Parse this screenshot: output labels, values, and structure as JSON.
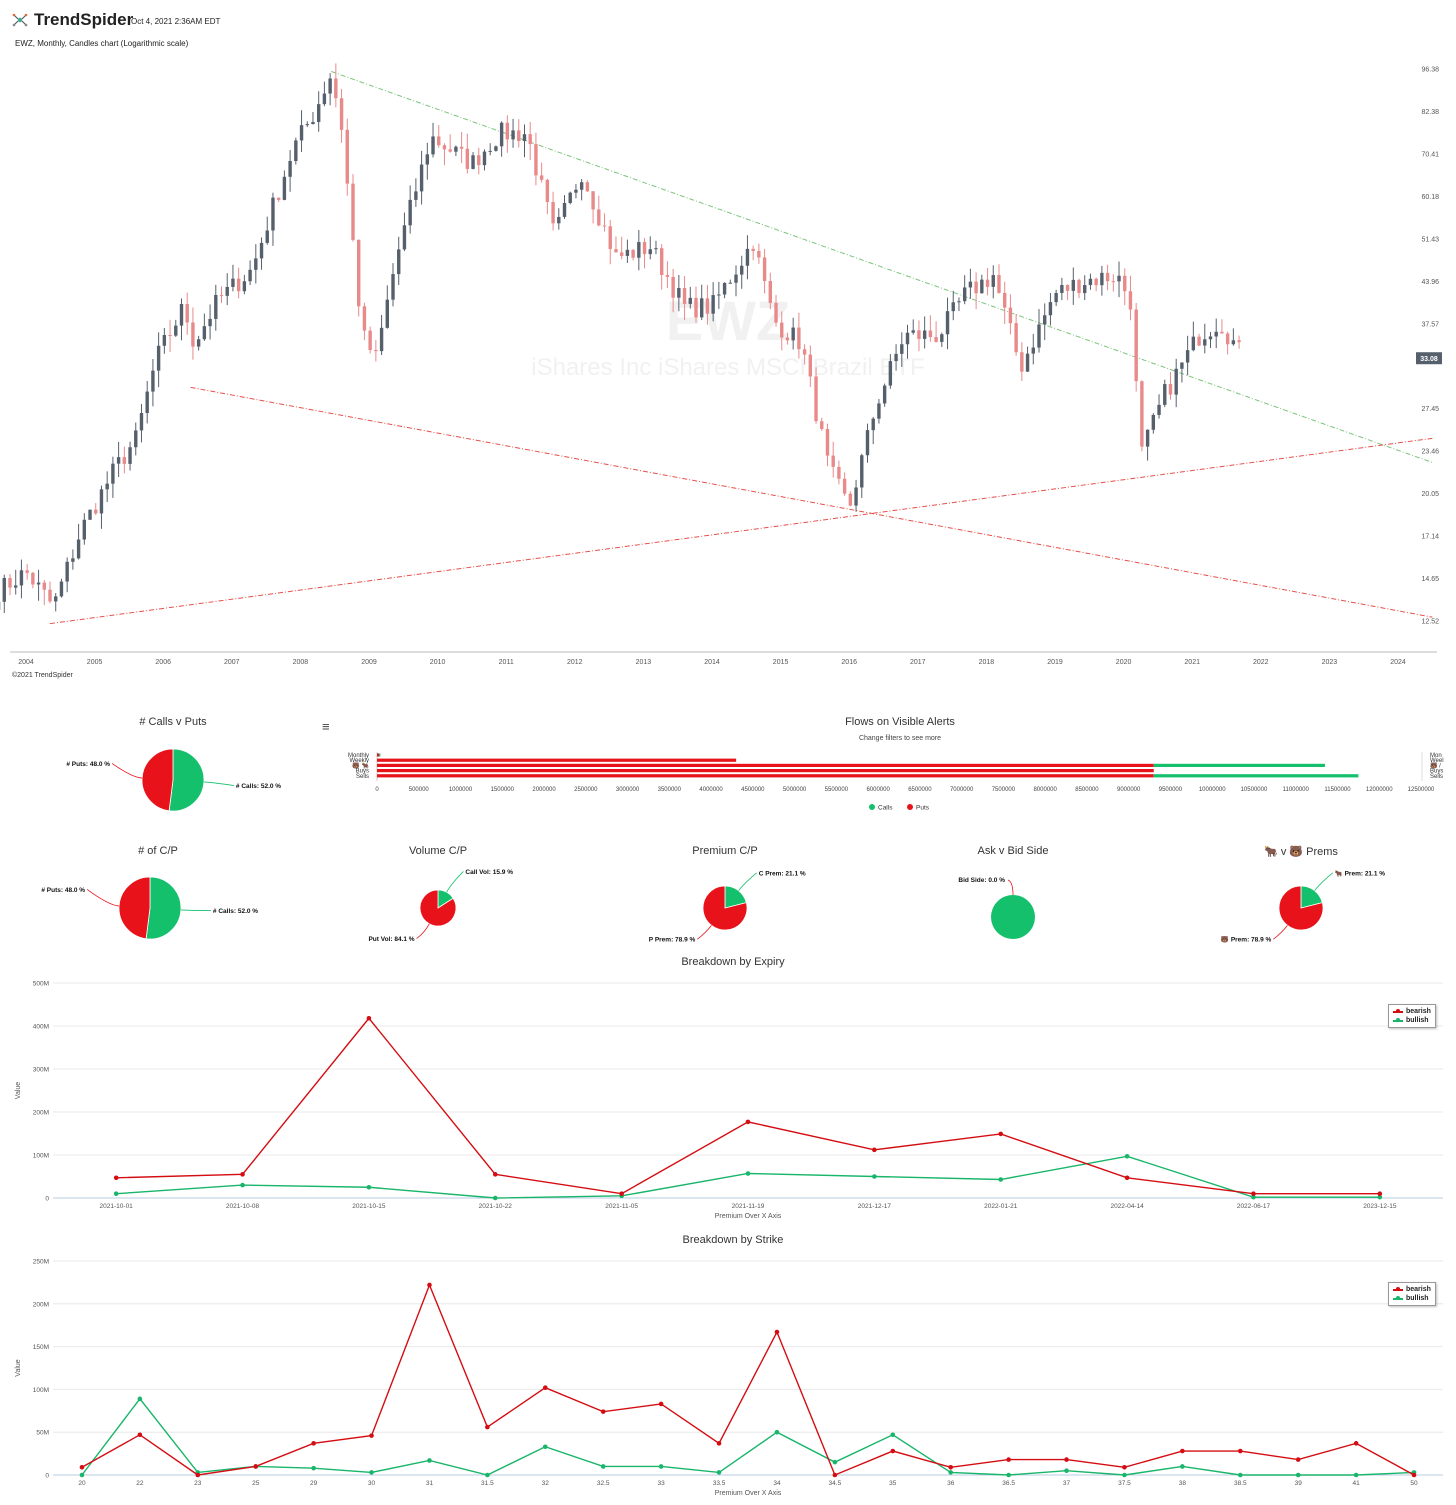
{
  "header": {
    "brand": "TrendSpider",
    "date": "Oct 4, 2021 2:36AM EDT",
    "subtitle": "EWZ, Monthly, Candles chart (Logarithmic scale)",
    "copyright": "©2021 TrendSpider",
    "watermark_symbol": "EWZ",
    "watermark_name": "iShares Inc iShares MSCI Brazil ETF",
    "price_badge": "33.08"
  },
  "colors": {
    "bull": "#56606d",
    "bear": "#e88a8a",
    "calls": "#14c06b",
    "puts": "#e8121b",
    "trend_green": "#7cc47c",
    "trend_red": "#e8504a",
    "bearish": "#d40d12",
    "bullish": "#18b56a"
  },
  "chart_data": [
    {
      "type": "candlestick",
      "title": "EWZ, Monthly, Candles chart (Logarithmic scale)",
      "y_scale": "log",
      "y_tick_labels": [
        "96.38",
        "82.38",
        "70.41",
        "60.18",
        "51.43",
        "43.96",
        "37.57",
        "27.45",
        "23.46",
        "20.05",
        "17.14",
        "14.65",
        "12.52"
      ],
      "x_tick_labels": [
        "2004",
        "2005",
        "2006",
        "2007",
        "2008",
        "2009",
        "2010",
        "2011",
        "2012",
        "2013",
        "2014",
        "2015",
        "2016",
        "2017",
        "2018",
        "2019",
        "2020",
        "2021",
        "2022",
        "2023",
        "2024"
      ],
      "last_price": 33.08,
      "anchors": [
        {
          "date": 2003.6,
          "close": 14.0
        },
        {
          "date": 2004.0,
          "close": 15.0
        },
        {
          "date": 2004.4,
          "close": 13.2
        },
        {
          "date": 2004.8,
          "close": 17.5
        },
        {
          "date": 2005.3,
          "close": 22.0
        },
        {
          "date": 2005.6,
          "close": 24.5
        },
        {
          "date": 2005.9,
          "close": 33.0
        },
        {
          "date": 2006.3,
          "close": 40.0
        },
        {
          "date": 2006.45,
          "close": 35.0
        },
        {
          "date": 2006.8,
          "close": 41.0
        },
        {
          "date": 2007.3,
          "close": 46.0
        },
        {
          "date": 2007.6,
          "close": 58.0
        },
        {
          "date": 2007.9,
          "close": 72.0
        },
        {
          "date": 2008.2,
          "close": 82.0
        },
        {
          "date": 2008.45,
          "close": 95.0
        },
        {
          "date": 2008.6,
          "close": 78.0
        },
        {
          "date": 2008.9,
          "close": 36.0
        },
        {
          "date": 2009.1,
          "close": 33.0
        },
        {
          "date": 2009.4,
          "close": 48.0
        },
        {
          "date": 2009.9,
          "close": 75.0
        },
        {
          "date": 2010.5,
          "close": 68.0
        },
        {
          "date": 2010.9,
          "close": 76.0
        },
        {
          "date": 2011.3,
          "close": 76.0
        },
        {
          "date": 2011.7,
          "close": 52.0
        },
        {
          "date": 2012.1,
          "close": 66.0
        },
        {
          "date": 2012.6,
          "close": 48.0
        },
        {
          "date": 2013.1,
          "close": 50.0
        },
        {
          "date": 2013.6,
          "close": 40.0
        },
        {
          "date": 2014.0,
          "close": 40.0
        },
        {
          "date": 2014.6,
          "close": 51.0
        },
        {
          "date": 2014.9,
          "close": 38.0
        },
        {
          "date": 2015.3,
          "close": 35.0
        },
        {
          "date": 2015.7,
          "close": 22.0
        },
        {
          "date": 2016.0,
          "close": 19.0
        },
        {
          "date": 2016.4,
          "close": 28.0
        },
        {
          "date": 2016.8,
          "close": 36.0
        },
        {
          "date": 2017.3,
          "close": 36.0
        },
        {
          "date": 2017.7,
          "close": 42.0
        },
        {
          "date": 2018.1,
          "close": 45.0
        },
        {
          "date": 2018.5,
          "close": 32.0
        },
        {
          "date": 2019.0,
          "close": 42.0
        },
        {
          "date": 2019.4,
          "close": 44.0
        },
        {
          "date": 2019.9,
          "close": 45.0
        },
        {
          "date": 2020.1,
          "close": 41.0
        },
        {
          "date": 2020.25,
          "close": 23.0
        },
        {
          "date": 2020.6,
          "close": 29.0
        },
        {
          "date": 2020.9,
          "close": 33.0
        },
        {
          "date": 2021.1,
          "close": 36.0
        },
        {
          "date": 2021.4,
          "close": 38.0
        },
        {
          "date": 2021.75,
          "close": 33.0
        }
      ],
      "trendlines": [
        {
          "name": "upper-resistance",
          "color": "green",
          "points": [
            [
              2008.45,
              95.5
            ],
            [
              2024.5,
              22.5
            ]
          ]
        },
        {
          "name": "lower-support-falling",
          "color": "red",
          "points": [
            [
              2006.4,
              29.7
            ],
            [
              2024.5,
              12.7
            ]
          ]
        },
        {
          "name": "lower-support-rising",
          "color": "red",
          "points": [
            [
              2004.35,
              12.4
            ],
            [
              2024.5,
              24.6
            ]
          ]
        }
      ]
    },
    {
      "type": "pie",
      "title": "# Calls v Puts",
      "slices": [
        {
          "label": "# Calls: 52.0 %",
          "value": 52.0,
          "color": "#14c06b"
        },
        {
          "label": "# Puts: 48.0 %",
          "value": 48.0,
          "color": "#e8121b"
        }
      ]
    },
    {
      "type": "bar",
      "orientation": "horizontal",
      "stacked": true,
      "title": "Flows on Visible Alerts",
      "subtitle": "Change filters to see more",
      "categories": [
        "Monthly",
        "Weekly",
        "🐻 🐂",
        "Buys",
        "Sells"
      ],
      "right_labels": [
        "Mon",
        "Weel",
        "🐻 /",
        "Buys",
        "Sells"
      ],
      "x_tick_labels": [
        "0",
        "500000",
        "1000000",
        "1500000",
        "2000000",
        "2500000",
        "3000000",
        "3500000",
        "4000000",
        "4500000",
        "5000000",
        "5500000",
        "6000000",
        "6500000",
        "7000000",
        "7500000",
        "8000000",
        "8500000",
        "9000000",
        "9500000",
        "10000000",
        "10500000",
        "11000000",
        "11500000",
        "12000000",
        "12500000"
      ],
      "xlim": [
        0,
        12500000
      ],
      "series": [
        {
          "name": "Calls",
          "color": "#14c06b",
          "values": [
            15000,
            0,
            2050000,
            0,
            2450000
          ]
        },
        {
          "name": "Puts",
          "color": "#e8121b",
          "values": [
            25000,
            4300000,
            9300000,
            9300000,
            9300000
          ]
        }
      ]
    },
    {
      "type": "pie",
      "title": "# of C/P",
      "slices": [
        {
          "label": "# Calls: 52.0 %",
          "value": 52.0,
          "color": "#14c06b"
        },
        {
          "label": "# Puts: 48.0 %",
          "value": 48.0,
          "color": "#e8121b"
        }
      ]
    },
    {
      "type": "pie",
      "title": "Volume C/P",
      "slices": [
        {
          "label": "Call Vol: 15.9 %",
          "value": 15.9,
          "color": "#14c06b"
        },
        {
          "label": "Put Vol: 84.1 %",
          "value": 84.1,
          "color": "#e8121b"
        }
      ]
    },
    {
      "type": "pie",
      "title": "Premium C/P",
      "slices": [
        {
          "label": "C Prem: 21.1 %",
          "value": 21.1,
          "color": "#14c06b"
        },
        {
          "label": "P Prem: 78.9 %",
          "value": 78.9,
          "color": "#e8121b"
        }
      ]
    },
    {
      "type": "pie",
      "title": "Ask v Bid Side",
      "slices": [
        {
          "label": "Bid Side: 0.0 %",
          "value": 0.0,
          "color": "#e8121b"
        },
        {
          "label": "",
          "value": 100.0,
          "color": "#14c06b"
        }
      ]
    },
    {
      "type": "pie",
      "title": "🐂 v 🐻 Prems",
      "slices": [
        {
          "label": "🐂 Prem: 21.1 %",
          "value": 21.1,
          "color": "#14c06b"
        },
        {
          "label": "🐻 Prem: 78.9 %",
          "value": 78.9,
          "color": "#e8121b"
        }
      ]
    },
    {
      "type": "line",
      "title": "Breakdown by Expiry",
      "xlabel": "Premium Over X Axis",
      "ylabel": "Value",
      "categories": [
        "2021-10-01",
        "2021-10-08",
        "2021-10-15",
        "2021-10-22",
        "2021-11-05",
        "2021-11-19",
        "2021-12-17",
        "2022-01-21",
        "2022-04-14",
        "2022-06-17",
        "2023-12-15"
      ],
      "y_tick_labels": [
        "0",
        "100M",
        "200M",
        "300M",
        "400M",
        "500M"
      ],
      "ylim": [
        0,
        500
      ],
      "legend": "top-right",
      "series": [
        {
          "name": "bearish",
          "color": "#d40d12",
          "values": [
            47,
            55,
            418,
            55,
            10,
            177,
            112,
            149,
            47,
            10,
            10
          ]
        },
        {
          "name": "bullish",
          "color": "#18b56a",
          "values": [
            10,
            30,
            25,
            0,
            5,
            57,
            50,
            43,
            97,
            2,
            2
          ]
        }
      ]
    },
    {
      "type": "line",
      "title": "Breakdown by Strike",
      "xlabel": "Premium Over X Axis",
      "ylabel": "Value",
      "categories": [
        "20",
        "22",
        "23",
        "25",
        "29",
        "30",
        "31",
        "31.5",
        "32",
        "32.5",
        "33",
        "33.5",
        "34",
        "34.5",
        "35",
        "36",
        "36.5",
        "37",
        "37.5",
        "38",
        "38.5",
        "39",
        "41",
        "50"
      ],
      "y_tick_labels": [
        "0",
        "50M",
        "100M",
        "150M",
        "200M",
        "250M"
      ],
      "ylim": [
        0,
        250
      ],
      "legend": "top-right",
      "series": [
        {
          "name": "bearish",
          "color": "#d40d12",
          "values": [
            9,
            47,
            0,
            10,
            37,
            46,
            222,
            56,
            102,
            74,
            83,
            37,
            167,
            0,
            28,
            9,
            18,
            18,
            9,
            28,
            28,
            18,
            37,
            0
          ]
        },
        {
          "name": "bullish",
          "color": "#18b56a",
          "values": [
            0,
            89,
            3,
            10,
            8,
            3,
            17,
            0,
            33,
            10,
            10,
            3,
            50,
            15,
            47,
            3,
            0,
            5,
            0,
            10,
            0,
            0,
            0,
            3
          ]
        }
      ]
    }
  ]
}
